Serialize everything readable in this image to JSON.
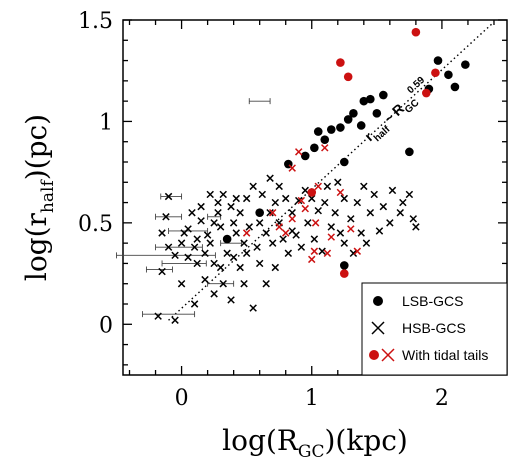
{
  "chart_data": {
    "type": "scatter",
    "xlabel": {
      "pre": "log(R",
      "sub": "GC",
      "post": ")(kpc)"
    },
    "ylabel": {
      "pre": "log(r",
      "sub": "half",
      "post": ")(pc)"
    },
    "xlim": [
      -0.45,
      2.5
    ],
    "ylim": [
      -0.25,
      1.5
    ],
    "xticks": [
      0,
      1,
      2
    ],
    "xtick_labels": [
      "0",
      "1",
      "2"
    ],
    "yticks": [
      0,
      0.5,
      1,
      1.5
    ],
    "ytick_labels": [
      "0",
      "0.5",
      "1",
      "1.5"
    ],
    "grid": false,
    "legend": {
      "position": "bottom-right",
      "entries": [
        {
          "marker": "dot",
          "color": "#000000",
          "label": "LSB-GCS"
        },
        {
          "marker": "cross",
          "color": "#000000",
          "label": "HSB-GCS"
        },
        {
          "marker": "dot+cross",
          "color": "#cc1111",
          "label": "With tidal tails"
        }
      ]
    },
    "fit_line": {
      "style": "dotted",
      "x": [
        -0.1,
        2.4
      ],
      "y": [
        0.02,
        1.49
      ],
      "annotation": {
        "base": "r",
        "base_sub": "half",
        "sim": "~",
        "rg": "R",
        "rg_sub": "GC",
        "exp": "0.59"
      }
    },
    "colors": {
      "normal": "#000000",
      "tidal": "#cc1111"
    },
    "series": [
      {
        "name": "LSB-GCS",
        "marker": "dot",
        "points": [
          [
            0.35,
            0.42
          ],
          [
            0.6,
            0.55
          ],
          [
            0.82,
            0.79
          ],
          [
            0.95,
            0.83
          ],
          [
            1.02,
            0.87
          ],
          [
            1.05,
            0.95
          ],
          [
            1.1,
            0.91
          ],
          [
            1.15,
            0.96
          ],
          [
            1.22,
            0.97
          ],
          [
            1.25,
            0.8
          ],
          [
            1.28,
            1.01
          ],
          [
            1.32,
            1.04
          ],
          [
            1.38,
            0.98
          ],
          [
            1.4,
            1.1
          ],
          [
            1.45,
            1.11
          ],
          [
            1.5,
            1.04
          ],
          [
            1.55,
            1.13
          ],
          [
            1.75,
            0.85
          ],
          [
            1.9,
            1.16
          ],
          [
            1.97,
            1.3
          ],
          [
            2.05,
            1.23
          ],
          [
            2.1,
            1.17
          ],
          [
            2.18,
            1.28
          ],
          [
            1.25,
            0.29
          ]
        ]
      },
      {
        "name": "HSB-GCS",
        "marker": "cross",
        "points": [
          [
            -0.18,
            0.04
          ],
          [
            -0.15,
            0.26
          ],
          [
            -0.15,
            0.45
          ],
          [
            -0.1,
            0.38
          ],
          [
            -0.1,
            0.63
          ],
          [
            -0.12,
            0.53
          ],
          [
            -0.05,
            0.34
          ],
          [
            -0.05,
            0.02
          ],
          [
            0.0,
            0.4
          ],
          [
            0.0,
            0.2
          ],
          [
            0.02,
            0.45
          ],
          [
            0.05,
            0.33
          ],
          [
            0.05,
            0.47
          ],
          [
            0.08,
            0.55
          ],
          [
            0.1,
            0.1
          ],
          [
            0.1,
            0.38
          ],
          [
            0.12,
            0.42
          ],
          [
            0.12,
            0.3
          ],
          [
            0.15,
            0.51
          ],
          [
            0.15,
            0.58
          ],
          [
            0.18,
            0.22
          ],
          [
            0.18,
            0.35
          ],
          [
            0.2,
            0.44
          ],
          [
            0.22,
            0.64
          ],
          [
            0.22,
            0.4
          ],
          [
            0.25,
            0.15
          ],
          [
            0.25,
            0.3
          ],
          [
            0.25,
            0.5
          ],
          [
            0.28,
            0.55
          ],
          [
            0.28,
            0.6
          ],
          [
            0.3,
            0.28
          ],
          [
            0.3,
            0.48
          ],
          [
            0.32,
            0.2
          ],
          [
            0.32,
            0.64
          ],
          [
            0.35,
            0.35
          ],
          [
            0.38,
            0.58
          ],
          [
            0.38,
            0.12
          ],
          [
            0.4,
            0.33
          ],
          [
            0.4,
            0.5
          ],
          [
            0.42,
            0.45
          ],
          [
            0.42,
            0.62
          ],
          [
            0.45,
            0.28
          ],
          [
            0.45,
            0.55
          ],
          [
            0.48,
            0.2
          ],
          [
            0.48,
            0.4
          ],
          [
            0.5,
            0.35
          ],
          [
            0.5,
            0.62
          ],
          [
            0.52,
            0.48
          ],
          [
            0.55,
            0.68
          ],
          [
            0.55,
            0.08
          ],
          [
            0.58,
            0.38
          ],
          [
            0.6,
            0.5
          ],
          [
            0.6,
            0.3
          ],
          [
            0.62,
            0.64
          ],
          [
            0.65,
            0.45
          ],
          [
            0.65,
            0.2
          ],
          [
            0.68,
            0.55
          ],
          [
            0.68,
            0.72
          ],
          [
            0.7,
            0.4
          ],
          [
            0.72,
            0.6
          ],
          [
            0.72,
            0.28
          ],
          [
            0.75,
            0.5
          ],
          [
            0.75,
            0.68
          ],
          [
            0.78,
            0.42
          ],
          [
            0.8,
            0.62
          ],
          [
            0.82,
            0.35
          ],
          [
            0.85,
            0.55
          ],
          [
            0.85,
            0.46
          ],
          [
            0.88,
            0.44
          ],
          [
            0.9,
            0.61
          ],
          [
            0.92,
            0.38
          ],
          [
            0.95,
            0.66
          ],
          [
            0.97,
            0.5
          ],
          [
            1.0,
            0.62
          ],
          [
            1.02,
            0.42
          ],
          [
            1.05,
            0.56
          ],
          [
            1.08,
            0.36
          ],
          [
            1.1,
            0.6
          ],
          [
            1.12,
            0.68
          ],
          [
            1.15,
            0.48
          ],
          [
            1.18,
            0.55
          ],
          [
            1.2,
            0.7
          ],
          [
            1.22,
            0.45
          ],
          [
            1.25,
            0.62
          ],
          [
            1.25,
            0.4
          ],
          [
            1.3,
            0.52
          ],
          [
            1.32,
            0.35
          ],
          [
            1.35,
            0.6
          ],
          [
            1.38,
            0.45
          ],
          [
            1.4,
            0.68
          ],
          [
            1.45,
            0.55
          ],
          [
            1.48,
            0.64
          ],
          [
            1.52,
            0.46
          ],
          [
            1.55,
            0.58
          ],
          [
            1.6,
            0.5
          ],
          [
            1.62,
            0.66
          ],
          [
            1.68,
            0.55
          ],
          [
            1.7,
            0.6
          ],
          [
            1.75,
            0.64
          ],
          [
            1.78,
            0.52
          ],
          [
            1.8,
            0.48
          ],
          [
            1.42,
            0.4
          ]
        ]
      },
      {
        "name": "With tidal tails",
        "marker": "dot",
        "tidal": true,
        "points": [
          [
            1.22,
            1.29
          ],
          [
            1.25,
            0.25
          ],
          [
            1.8,
            1.44
          ],
          [
            1.88,
            1.14
          ],
          [
            1.95,
            1.24
          ],
          [
            1.28,
            1.22
          ],
          [
            1.0,
            0.65
          ]
        ]
      },
      {
        "name": "With tidal tails",
        "marker": "cross",
        "tidal": true,
        "points": [
          [
            0.5,
            0.45
          ],
          [
            0.75,
            0.48
          ],
          [
            0.8,
            0.45
          ],
          [
            0.85,
            0.77
          ],
          [
            0.9,
            0.85
          ],
          [
            0.95,
            0.57
          ],
          [
            1.0,
            0.32
          ],
          [
            1.02,
            0.36
          ],
          [
            1.05,
            0.68
          ],
          [
            1.1,
            0.87
          ],
          [
            1.15,
            0.43
          ],
          [
            1.22,
            0.65
          ],
          [
            1.3,
            0.47
          ],
          [
            1.35,
            0.36
          ],
          [
            0.92,
            0.61
          ],
          [
            1.12,
            0.35
          ],
          [
            0.7,
            0.55
          ],
          [
            0.85,
            0.52
          ],
          [
            1.03,
            0.5
          ]
        ]
      }
    ],
    "error_bars": [
      {
        "x": 0.38,
        "y": 0.4,
        "dx": 0.08
      },
      {
        "x": -0.12,
        "y": 0.34,
        "dx": 0.38
      },
      {
        "x": -0.02,
        "y": 0.38,
        "dx": 0.18
      },
      {
        "x": 0.02,
        "y": 0.3,
        "dx": 0.17
      },
      {
        "x": -0.1,
        "y": 0.05,
        "dx": 0.2
      },
      {
        "x": -0.08,
        "y": 0.63,
        "dx": 0.08
      },
      {
        "x": -0.1,
        "y": 0.53,
        "dx": 0.1
      },
      {
        "x": -0.17,
        "y": 0.27,
        "dx": 0.1
      },
      {
        "x": 0.05,
        "y": 0.46,
        "dx": 0.15
      },
      {
        "x": 0.3,
        "y": 0.2,
        "dx": 0.1
      },
      {
        "x": 0.6,
        "y": 1.1,
        "dx": 0.08
      },
      {
        "x": 0.25,
        "y": 0.53,
        "dx": 0.05
      }
    ]
  }
}
